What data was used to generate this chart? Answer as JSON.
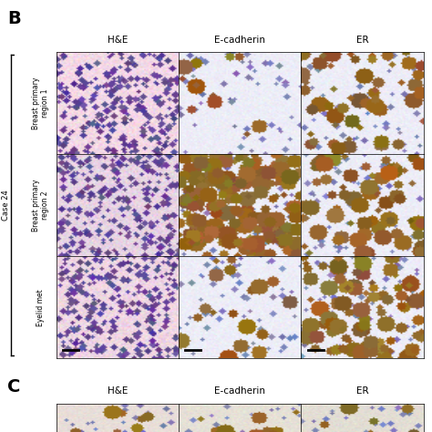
{
  "title_b": "B",
  "title_c": "C",
  "col_headers": [
    "H&E",
    "E-cadherin",
    "ER"
  ],
  "row_labels": [
    "Breast primary\nregion 1",
    "Breast primary\nregion 2",
    "Eyelid met"
  ],
  "case_label": "Case 24",
  "background": "#ffffff",
  "border_color": "#000000",
  "fig_width": 4.74,
  "fig_height": 4.74,
  "dpi": 100
}
